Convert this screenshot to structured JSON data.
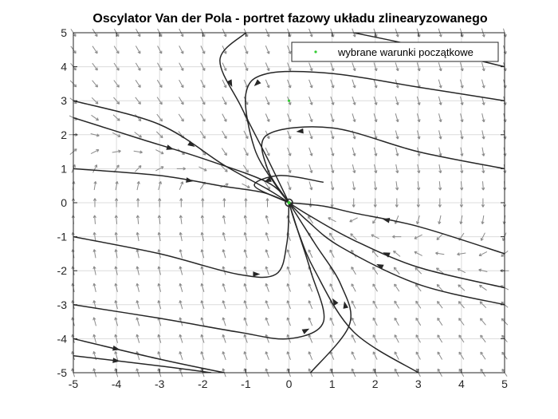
{
  "chart_data": {
    "type": "line",
    "title": "Oscylator Van der Pola - portret fazowy układu zlinearyzowanego",
    "xlim": [
      -5,
      5
    ],
    "ylim": [
      -5,
      5
    ],
    "xticks": [
      -5,
      -4,
      -3,
      -2,
      -1,
      0,
      1,
      2,
      3,
      4,
      5
    ],
    "yticks": [
      -5,
      -4,
      -3,
      -2,
      -1,
      0,
      1,
      2,
      3,
      4,
      5
    ],
    "grid": true,
    "legend": {
      "position": "top-right",
      "entries": [
        "wybrane warunki początkowe"
      ]
    },
    "equilibrium": {
      "x": 0,
      "y": 0
    },
    "initial_point": {
      "x": 0,
      "y": 3
    },
    "colors": {
      "trajectory": "#262626",
      "quiver": "#8a8a8a",
      "marker": "#33cc33",
      "grid": "#dcdcdc"
    },
    "system": {
      "a11": 0,
      "a12": 1,
      "a21": -1,
      "a22": -2.5
    },
    "series": [
      {
        "points": [
          [
            -5,
            2.5
          ],
          [
            -3.5,
            1.9
          ],
          [
            -2,
            1.3
          ],
          [
            -0.5,
            0.6
          ],
          [
            0,
            0
          ]
        ]
      },
      {
        "points": [
          [
            -5,
            3
          ],
          [
            -3,
            2.3
          ],
          [
            -1.5,
            1.1
          ],
          [
            -0.5,
            0.4
          ],
          [
            0,
            0
          ]
        ]
      },
      {
        "points": [
          [
            -5,
            1
          ],
          [
            -3,
            0.8
          ],
          [
            -1.6,
            0.5
          ],
          [
            -0.6,
            0.3
          ],
          [
            0,
            0
          ]
        ]
      },
      {
        "points": [
          [
            -5,
            -1
          ],
          [
            -3,
            -1.5
          ],
          [
            -1.2,
            -2.1
          ],
          [
            -0.3,
            -2.1
          ],
          [
            -0.05,
            -1.2
          ],
          [
            0,
            0
          ]
        ]
      },
      {
        "points": [
          [
            -5,
            -3
          ],
          [
            -3,
            -3.4
          ],
          [
            -1.2,
            -3.8
          ],
          [
            0,
            -4
          ],
          [
            0.8,
            -3.5
          ],
          [
            0.5,
            -2
          ],
          [
            0.2,
            -0.8
          ],
          [
            0,
            0
          ]
        ]
      },
      {
        "points": [
          [
            -5,
            -4.5
          ],
          [
            -3,
            -4.8
          ],
          [
            -1.8,
            -5
          ]
        ]
      },
      {
        "points": [
          [
            -5,
            -4
          ],
          [
            -3,
            -4.6
          ],
          [
            -1.5,
            -5
          ]
        ]
      },
      {
        "points": [
          [
            5,
            3
          ],
          [
            3,
            3.4
          ],
          [
            1,
            3.8
          ],
          [
            -0.5,
            3.8
          ],
          [
            -1,
            3.2
          ],
          [
            -0.8,
            1.6
          ],
          [
            -0.3,
            0.5
          ],
          [
            0,
            0
          ]
        ]
      },
      {
        "points": [
          [
            5,
            4
          ],
          [
            3,
            4.6
          ],
          [
            1.5,
            5
          ]
        ]
      },
      {
        "points": [
          [
            5,
            1
          ],
          [
            3,
            1.5
          ],
          [
            1,
            2.2
          ],
          [
            -0.5,
            2
          ],
          [
            -0.5,
            1
          ],
          [
            0,
            0
          ]
        ]
      },
      {
        "points": [
          [
            5,
            -1.5
          ],
          [
            3,
            -0.7
          ],
          [
            1.5,
            -0.3
          ],
          [
            0.8,
            -0.1
          ],
          [
            0,
            0
          ]
        ]
      },
      {
        "points": [
          [
            5,
            -2.5
          ],
          [
            3,
            -1.9
          ],
          [
            1.5,
            -1.1
          ],
          [
            0.5,
            -0.4
          ],
          [
            0,
            0
          ]
        ]
      },
      {
        "points": [
          [
            5,
            -3
          ],
          [
            3,
            -2.4
          ],
          [
            1.2,
            -1.3
          ],
          [
            0.4,
            -0.5
          ],
          [
            0,
            0
          ]
        ]
      },
      {
        "points": [
          [
            3,
            -5
          ],
          [
            1.5,
            -3.8
          ],
          [
            0.6,
            -2
          ],
          [
            0.2,
            -0.8
          ],
          [
            0,
            0
          ]
        ]
      },
      {
        "points": [
          [
            0.5,
            -5
          ],
          [
            1.4,
            -3.6
          ],
          [
            1.2,
            -2.4
          ],
          [
            0.6,
            -1.2
          ],
          [
            0,
            0
          ]
        ]
      },
      {
        "points": [
          [
            -1,
            5
          ],
          [
            -1.6,
            4.2
          ],
          [
            -1.1,
            2.8
          ],
          [
            -0.5,
            1.3
          ],
          [
            0,
            0
          ]
        ]
      },
      {
        "points": [
          [
            0.8,
            0.6
          ],
          [
            -0.2,
            0.8
          ],
          [
            -0.8,
            0.5
          ],
          [
            0,
            0
          ]
        ]
      }
    ]
  }
}
